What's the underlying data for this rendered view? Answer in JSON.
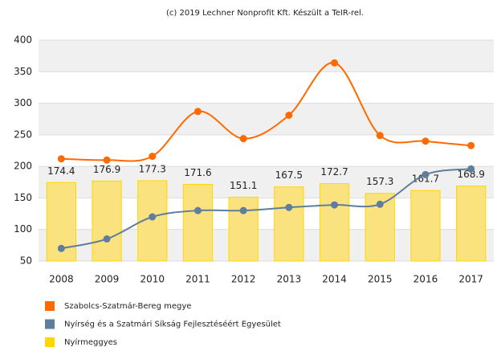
{
  "chart_data": {
    "type": "bar_line",
    "title": "(c) 2019 Lechner Nonprofit Kft. Készült a TeIR-rel.",
    "categories": [
      "2008",
      "2009",
      "2010",
      "2011",
      "2012",
      "2013",
      "2014",
      "2015",
      "2016",
      "2017"
    ],
    "series": [
      {
        "name": "Szabolcs-Szatmár-Bereg megye",
        "type": "line",
        "color": "#ff6a00",
        "values": [
          212,
          210,
          216,
          287,
          244,
          281,
          364,
          249,
          240,
          233
        ]
      },
      {
        "name": "Nyírség és a Szatmári Síkság Fejlesztéséért Egyesület",
        "type": "line",
        "color": "#5f7d9c",
        "values": [
          70,
          85,
          120,
          130,
          130,
          135,
          139,
          140,
          187,
          196
        ]
      },
      {
        "name": "Nyírmeggyes",
        "type": "bar",
        "color": "#ffd700",
        "values": [
          174.4,
          176.9,
          177.3,
          171.6,
          151.1,
          167.5,
          172.7,
          157.3,
          161.7,
          168.9
        ]
      }
    ],
    "ylim": [
      50,
      400
    ],
    "yticks": [
      50,
      100,
      150,
      200,
      250,
      300,
      350,
      400
    ],
    "grid": true
  }
}
